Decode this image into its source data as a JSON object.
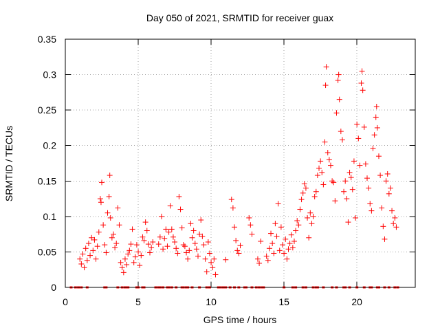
{
  "chart_data": {
    "type": "scatter",
    "title": "Day 050 of 2021, SRMTID for receiver guax",
    "xlabel": "GPS time / hours",
    "ylabel": "SRMTID / TECUs",
    "xlim": [
      0,
      24
    ],
    "ylim": [
      0,
      0.35
    ],
    "x_ticks": [
      0,
      5,
      10,
      15,
      20
    ],
    "x_tick_labels": [
      "0",
      "5",
      "10",
      "15",
      "20"
    ],
    "y_ticks": [
      0,
      0.05,
      0.1,
      0.15,
      0.2,
      0.25,
      0.3,
      0.35
    ],
    "y_tick_labels": [
      "0",
      "0.05",
      "0.1",
      "0.15",
      "0.2",
      "0.25",
      "0.3",
      "0.35"
    ],
    "grid": true,
    "marker": "plus",
    "series_color": "#ff0000",
    "series": [
      {
        "name": "SRMTID",
        "points": [
          [
            1.0,
            0.04
          ],
          [
            1.1,
            0.033
          ],
          [
            1.2,
            0.047
          ],
          [
            1.3,
            0.028
          ],
          [
            1.4,
            0.055
          ],
          [
            1.5,
            0.038
          ],
          [
            1.6,
            0.062
          ],
          [
            1.7,
            0.045
          ],
          [
            1.8,
            0.07
          ],
          [
            1.9,
            0.052
          ],
          [
            2.0,
            0.067
          ],
          [
            2.1,
            0.04
          ],
          [
            2.2,
            0.058
          ],
          [
            2.3,
            0.078
          ],
          [
            2.4,
            0.125
          ],
          [
            2.45,
            0.12
          ],
          [
            2.5,
            0.148
          ],
          [
            2.6,
            0.088
          ],
          [
            2.7,
            0.06
          ],
          [
            2.8,
            0.049
          ],
          [
            2.9,
            0.105
          ],
          [
            3.0,
            0.128
          ],
          [
            3.05,
            0.158
          ],
          [
            3.1,
            0.098
          ],
          [
            3.2,
            0.07
          ],
          [
            3.3,
            0.075
          ],
          [
            3.4,
            0.056
          ],
          [
            3.5,
            0.062
          ],
          [
            3.6,
            0.112
          ],
          [
            3.7,
            0.088
          ],
          [
            3.8,
            0.035
          ],
          [
            3.9,
            0.028
          ],
          [
            4.0,
            0.021
          ],
          [
            4.1,
            0.04
          ],
          [
            4.2,
            0.032
          ],
          [
            4.3,
            0.047
          ],
          [
            4.4,
            0.052
          ],
          [
            4.5,
            0.061
          ],
          [
            4.6,
            0.082
          ],
          [
            4.7,
            0.035
          ],
          [
            4.8,
            0.043
          ],
          [
            4.9,
            0.06
          ],
          [
            5.0,
            0.05
          ],
          [
            5.1,
            0.031
          ],
          [
            5.2,
            0.045
          ],
          [
            5.3,
            0.071
          ],
          [
            5.4,
            0.066
          ],
          [
            5.5,
            0.092
          ],
          [
            5.6,
            0.08
          ],
          [
            5.7,
            0.061
          ],
          [
            5.8,
            0.049
          ],
          [
            5.9,
            0.056
          ],
          [
            6.0,
            0.064
          ],
          [
            6.4,
            0.061
          ],
          [
            6.5,
            0.071
          ],
          [
            6.6,
            0.1
          ],
          [
            6.7,
            0.054
          ],
          [
            6.8,
            0.069
          ],
          [
            6.9,
            0.082
          ],
          [
            7.0,
            0.058
          ],
          [
            7.1,
            0.078
          ],
          [
            7.2,
            0.115
          ],
          [
            7.3,
            0.082
          ],
          [
            7.4,
            0.071
          ],
          [
            7.5,
            0.064
          ],
          [
            7.6,
            0.055
          ],
          [
            7.7,
            0.048
          ],
          [
            7.8,
            0.128
          ],
          [
            7.9,
            0.11
          ],
          [
            8.0,
            0.084
          ],
          [
            8.1,
            0.06
          ],
          [
            8.2,
            0.058
          ],
          [
            8.3,
            0.049
          ],
          [
            8.4,
            0.04
          ],
          [
            8.5,
            0.052
          ],
          [
            8.6,
            0.09
          ],
          [
            8.7,
            0.07
          ],
          [
            8.8,
            0.08
          ],
          [
            8.9,
            0.062
          ],
          [
            9.0,
            0.054
          ],
          [
            9.1,
            0.044
          ],
          [
            9.2,
            0.075
          ],
          [
            9.3,
            0.095
          ],
          [
            9.4,
            0.072
          ],
          [
            9.5,
            0.06
          ],
          [
            9.6,
            0.04
          ],
          [
            9.7,
            0.022
          ],
          [
            9.8,
            0.064
          ],
          [
            9.9,
            0.048
          ],
          [
            10.0,
            0.035
          ],
          [
            10.1,
            0.028
          ],
          [
            10.2,
            0.04
          ],
          [
            10.3,
            0.018
          ],
          [
            11.0,
            0.039
          ],
          [
            11.4,
            0.124
          ],
          [
            11.5,
            0.112
          ],
          [
            11.6,
            0.085
          ],
          [
            11.7,
            0.066
          ],
          [
            11.8,
            0.052
          ],
          [
            11.9,
            0.048
          ],
          [
            12.0,
            0.059
          ],
          [
            12.6,
            0.098
          ],
          [
            12.7,
            0.088
          ],
          [
            12.8,
            0.075
          ],
          [
            13.2,
            0.04
          ],
          [
            13.3,
            0.034
          ],
          [
            13.4,
            0.065
          ],
          [
            13.8,
            0.044
          ],
          [
            13.9,
            0.038
          ],
          [
            14.0,
            0.055
          ],
          [
            14.1,
            0.076
          ],
          [
            14.2,
            0.062
          ],
          [
            14.3,
            0.048
          ],
          [
            14.4,
            0.09
          ],
          [
            14.5,
            0.072
          ],
          [
            14.6,
            0.118
          ],
          [
            14.7,
            0.052
          ],
          [
            14.8,
            0.085
          ],
          [
            14.9,
            0.06
          ],
          [
            15.0,
            0.048
          ],
          [
            15.1,
            0.068
          ],
          [
            15.2,
            0.04
          ],
          [
            15.3,
            0.054
          ],
          [
            15.4,
            0.062
          ],
          [
            15.5,
            0.074
          ],
          [
            15.6,
            0.056
          ],
          [
            15.7,
            0.065
          ],
          [
            15.8,
            0.08
          ],
          [
            15.9,
            0.094
          ],
          [
            16.0,
            0.088
          ],
          [
            16.1,
            0.11
          ],
          [
            16.2,
            0.124
          ],
          [
            16.3,
            0.133
          ],
          [
            16.4,
            0.146
          ],
          [
            16.5,
            0.14
          ],
          [
            16.6,
            0.098
          ],
          [
            16.7,
            0.07
          ],
          [
            16.8,
            0.105
          ],
          [
            16.9,
            0.09
          ],
          [
            17.0,
            0.1
          ],
          [
            17.1,
            0.128
          ],
          [
            17.2,
            0.135
          ],
          [
            17.3,
            0.158
          ],
          [
            17.4,
            0.168
          ],
          [
            17.5,
            0.178
          ],
          [
            17.6,
            0.162
          ],
          [
            17.7,
            0.145
          ],
          [
            17.8,
            0.205
          ],
          [
            17.85,
            0.285
          ],
          [
            17.9,
            0.311
          ],
          [
            18.0,
            0.19
          ],
          [
            18.1,
            0.18
          ],
          [
            18.2,
            0.172
          ],
          [
            18.3,
            0.15
          ],
          [
            18.4,
            0.148
          ],
          [
            18.5,
            0.122
          ],
          [
            18.6,
            0.246
          ],
          [
            18.7,
            0.292
          ],
          [
            18.75,
            0.3
          ],
          [
            18.8,
            0.265
          ],
          [
            18.9,
            0.22
          ],
          [
            19.0,
            0.208
          ],
          [
            19.1,
            0.135
          ],
          [
            19.2,
            0.15
          ],
          [
            19.3,
            0.125
          ],
          [
            19.4,
            0.092
          ],
          [
            19.5,
            0.162
          ],
          [
            19.6,
            0.155
          ],
          [
            19.7,
            0.138
          ],
          [
            19.8,
            0.178
          ],
          [
            19.9,
            0.098
          ],
          [
            20.0,
            0.23
          ],
          [
            20.1,
            0.21
          ],
          [
            20.2,
            0.172
          ],
          [
            20.3,
            0.288
          ],
          [
            20.35,
            0.305
          ],
          [
            20.4,
            0.278
          ],
          [
            20.5,
            0.226
          ],
          [
            20.6,
            0.174
          ],
          [
            20.7,
            0.154
          ],
          [
            20.8,
            0.14
          ],
          [
            20.9,
            0.118
          ],
          [
            21.0,
            0.108
          ],
          [
            21.1,
            0.196
          ],
          [
            21.2,
            0.215
          ],
          [
            21.3,
            0.24
          ],
          [
            21.35,
            0.255
          ],
          [
            21.4,
            0.225
          ],
          [
            21.5,
            0.185
          ],
          [
            21.6,
            0.158
          ],
          [
            21.7,
            0.112
          ],
          [
            21.8,
            0.086
          ],
          [
            21.9,
            0.068
          ],
          [
            22.0,
            0.15
          ],
          [
            22.1,
            0.16
          ],
          [
            22.2,
            0.132
          ],
          [
            22.3,
            0.14
          ],
          [
            22.4,
            0.108
          ],
          [
            22.5,
            0.09
          ],
          [
            22.6,
            0.098
          ],
          [
            22.7,
            0.085
          ]
        ]
      }
    ],
    "rug_marks": [
      0.4,
      0.7,
      0.9,
      1.1,
      1.5,
      2.7,
      2.8,
      3.6,
      3.9,
      4.1,
      4.2,
      4.3,
      4.9,
      5.0,
      5.3,
      5.4,
      6.2,
      6.4,
      6.5,
      6.7,
      7.0,
      7.1,
      7.3,
      7.6,
      8.0,
      8.1,
      8.3,
      8.4,
      8.7,
      9.2,
      9.7,
      9.9,
      10.5,
      10.6,
      10.8,
      10.9,
      11.0,
      11.3,
      11.6,
      11.9,
      12.3,
      12.4,
      12.8,
      13.1,
      13.3,
      13.5,
      13.6,
      15.0,
      15.6,
      15.8,
      16.3,
      16.5,
      17.0,
      17.2,
      17.3,
      17.7,
      18.3,
      18.6,
      19.1,
      19.2,
      19.5,
      20.0,
      20.5,
      20.9,
      21.0,
      21.4,
      21.5,
      21.9,
      22.2,
      22.6,
      22.8
    ]
  }
}
